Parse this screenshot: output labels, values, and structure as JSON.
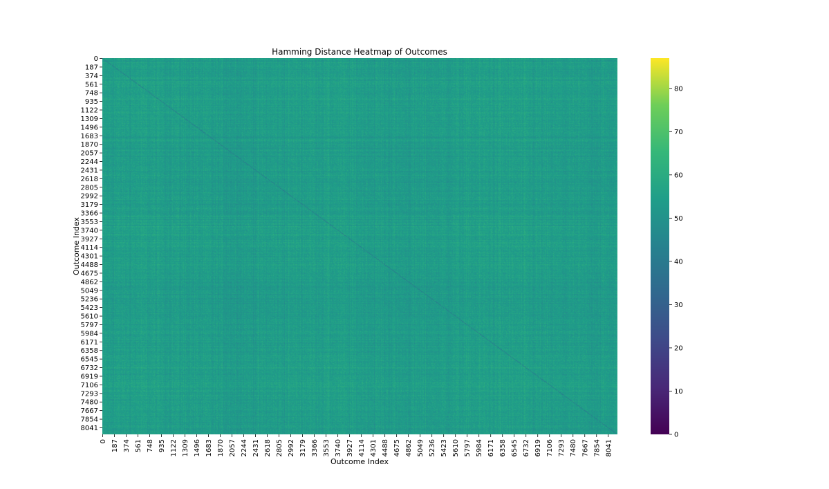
{
  "chart_data": {
    "type": "heatmap",
    "title": "Hamming Distance Heatmap of Outcomes",
    "xlabel": "Outcome Index",
    "ylabel": "Outcome Index",
    "n_outcomes": 8192,
    "tick_labels": [
      "0",
      "187",
      "374",
      "561",
      "748",
      "935",
      "1122",
      "1309",
      "1496",
      "1683",
      "1870",
      "2057",
      "2244",
      "2431",
      "2618",
      "2805",
      "2992",
      "3179",
      "3366",
      "3553",
      "3740",
      "3927",
      "4114",
      "4301",
      "4488",
      "4675",
      "4862",
      "5049",
      "5236",
      "5423",
      "5610",
      "5797",
      "5984",
      "6171",
      "6358",
      "6545",
      "6732",
      "6919",
      "7106",
      "7293",
      "7480",
      "7667",
      "7854",
      "8041"
    ],
    "colormap": "viridis",
    "value_range": [
      0,
      87
    ],
    "typical_value": 54,
    "typical_spread": 5,
    "diagonal_value": 0,
    "colorbar": {
      "ticks": [
        0,
        10,
        20,
        30,
        40,
        50,
        60,
        70,
        80
      ],
      "tick_labels": [
        "0",
        "10",
        "20",
        "30",
        "40",
        "50",
        "60",
        "70",
        "80"
      ],
      "placement": "right"
    },
    "colors": {
      "low": "#440154",
      "mid": "#21918c",
      "high": "#fde725"
    }
  }
}
